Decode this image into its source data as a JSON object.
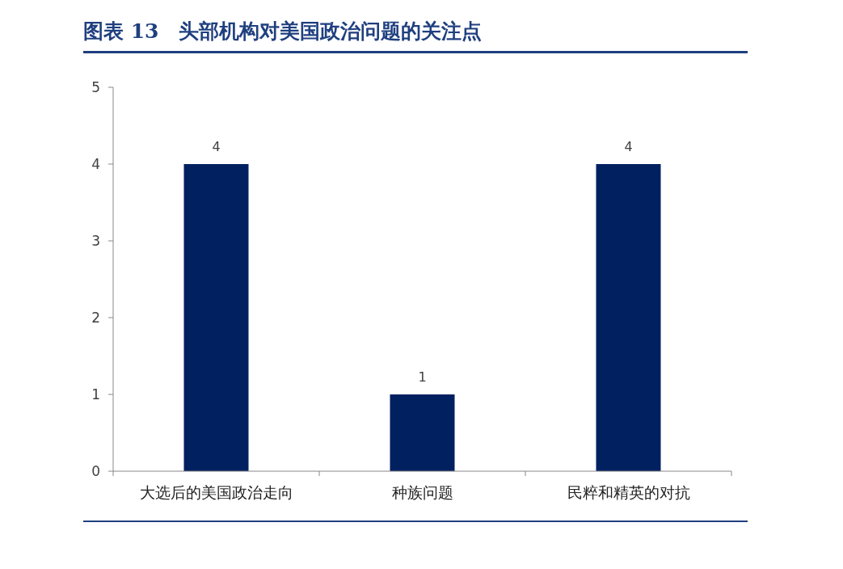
{
  "chart_data": {
    "type": "bar",
    "title": "图表 13　头部机构对美国政治问题的关注点",
    "categories": [
      "大选后的美国政治走向",
      "种族问题",
      "民粹和精英的对抗"
    ],
    "values": [
      4,
      1,
      4
    ],
    "color": "#002060",
    "ylim": [
      0,
      5
    ],
    "yticks": [
      0,
      1,
      2,
      3,
      4,
      5
    ],
    "grid": false,
    "data_labels": true
  }
}
